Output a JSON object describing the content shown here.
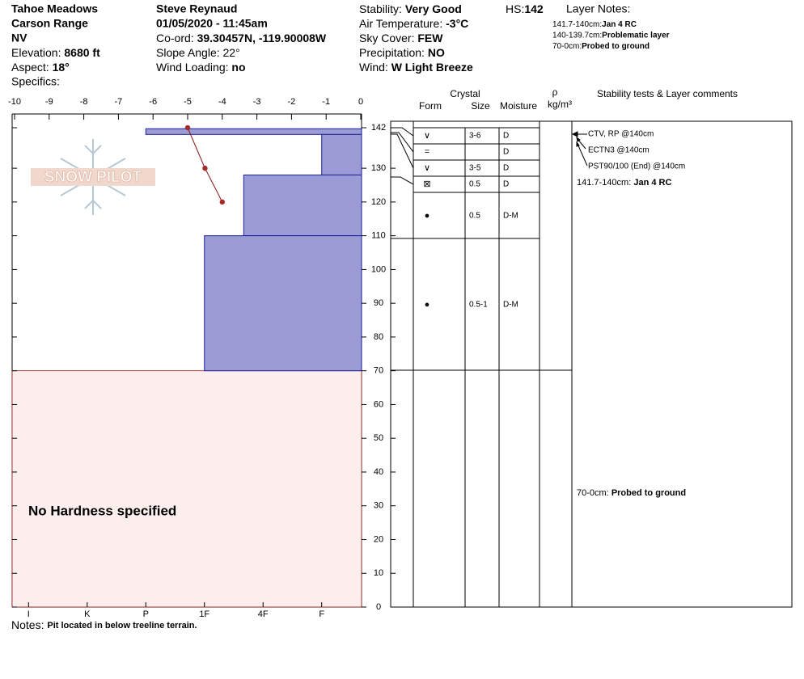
{
  "header": {
    "location": "Tahoe Meadows",
    "range": "Carson Range",
    "state": "NV",
    "elevation": {
      "label": "Elevation:",
      "value": "8680 ft"
    },
    "aspect": {
      "label": "Aspect:",
      "value": "18°"
    },
    "specifics": "Specifics:",
    "observer": "Steve Reynaud",
    "datetime": "01/05/2020 - 11:45am",
    "coord": {
      "label": "Co-ord:",
      "value": "39.30457N, -119.90008W"
    },
    "slope": {
      "label": "Slope Angle:",
      "value": "22°"
    },
    "wind_loading": {
      "label": "Wind Loading:",
      "value": "no"
    },
    "stability": {
      "label": "Stability:",
      "value": "Very Good"
    },
    "air_temp": {
      "label": "Air Temperature:",
      "value": "-3°C"
    },
    "sky": {
      "label": "Sky Cover:",
      "value": "FEW"
    },
    "precip": {
      "label": "Precipitation:",
      "value": "NO"
    },
    "wind": {
      "label": "Wind:",
      "value": "W Light Breeze"
    },
    "hs": {
      "label": "HS:",
      "value": "142"
    },
    "layer_notes": {
      "title": "Layer Notes:",
      "items": [
        {
          "range": "141.7-140cm:",
          "text": "Jan 4 RC"
        },
        {
          "range": "140-139.7cm:",
          "text": "Problematic layer"
        },
        {
          "range": "70-0cm:",
          "text": "Probed to ground"
        }
      ]
    }
  },
  "profile": {
    "logo": "SNOW PILOT",
    "temperature_axis": {
      "lim": [
        -10,
        0
      ],
      "ticks": [
        -10,
        -9,
        -8,
        -7,
        -6,
        -5,
        -4,
        -3,
        -2,
        -1,
        0
      ]
    },
    "depth_axis": {
      "lim": [
        0,
        142
      ],
      "ticks": [
        142,
        130,
        120,
        110,
        100,
        90,
        80,
        70,
        60,
        50,
        40,
        30,
        20,
        10,
        0
      ]
    },
    "hardness_axis": {
      "lim": [
        6.28,
        0.32
      ],
      "ticks": [
        {
          "value": 6,
          "label": "I"
        },
        {
          "value": 5,
          "label": "K"
        },
        {
          "value": 4,
          "label": "P"
        },
        {
          "value": 3,
          "label": "1F"
        },
        {
          "value": 2,
          "label": "4F"
        },
        {
          "value": 1,
          "label": "F"
        }
      ]
    },
    "hardness_layers": [
      {
        "top": 141.7,
        "bottom": 140,
        "hardness": 4
      },
      {
        "top": 140,
        "bottom": 128,
        "hardness": 1
      },
      {
        "top": 128,
        "bottom": 110,
        "hardness": 2.33
      },
      {
        "top": 110,
        "bottom": 70,
        "hardness": 3
      }
    ],
    "no_hardness": {
      "top": 70,
      "bottom": 0,
      "label": "No Hardness specified"
    },
    "temperature_profile": {
      "temperatures": [
        -5,
        -4.5,
        -4
      ],
      "depths": [
        142,
        130,
        120
      ]
    }
  },
  "table": {
    "headers": {
      "crystal": "Crystal",
      "form": "Form",
      "size": "Size",
      "moisture": "Moisture",
      "rho": "ρ",
      "density_unit": "kg/m³",
      "comments": "Stability tests & Layer comments"
    },
    "rows": [
      {
        "form": "∨",
        "size": "3-6",
        "moisture": "D"
      },
      {
        "form": "=",
        "moisture": "D"
      },
      {
        "form": "∨",
        "size": "3-5",
        "moisture": "D"
      },
      {
        "form": "⊠",
        "size": "0.5",
        "moisture": "D"
      },
      {
        "form": "●",
        "size": "0.5",
        "moisture": "D-M"
      },
      {
        "form": "●",
        "size": "0.5-1",
        "moisture": "D-M"
      }
    ],
    "tests": [
      "CTV, RP @140cm",
      "ECTN3 @140cm",
      "PST90/100 (End) @140cm"
    ],
    "comments": [
      {
        "range": "141.7-140cm:",
        "text": "Jan 4 RC"
      },
      {
        "range": "70-0cm:",
        "text": "Probed to ground"
      }
    ]
  },
  "notes": {
    "label": "Notes:",
    "text": "Pit located in below treeline terrain."
  }
}
